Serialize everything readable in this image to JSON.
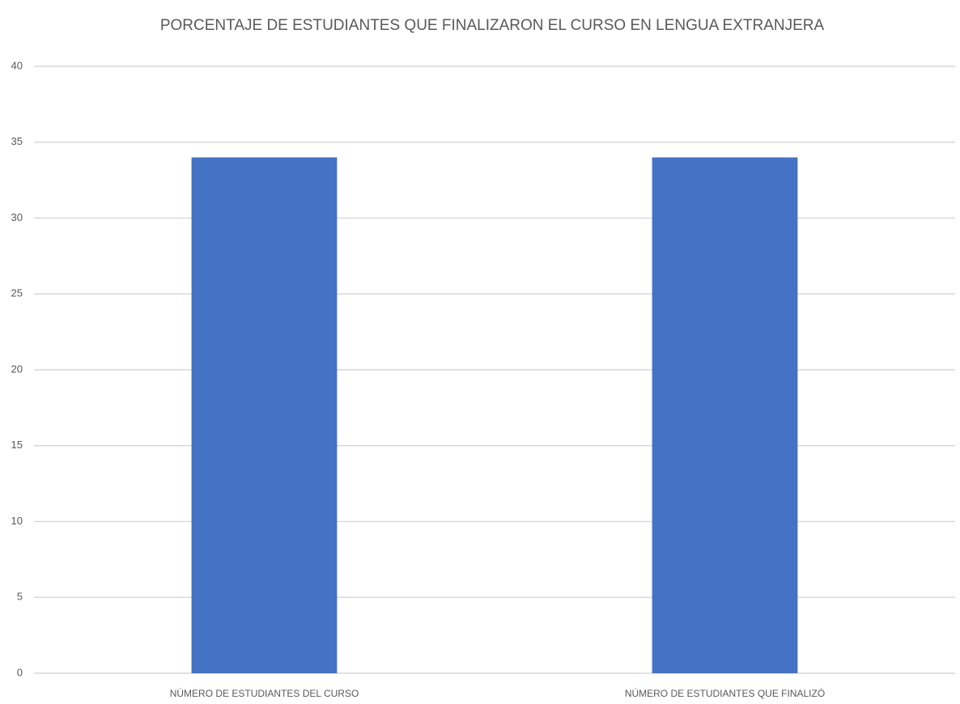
{
  "chart_data": {
    "type": "bar",
    "title": "PORCENTAJE DE ESTUDIANTES QUE FINALIZARON EL CURSO EN LENGUA EXTRANJERA",
    "categories": [
      "NÚMERO DE ESTUDIANTES DEL CURSO",
      "NÚMERO DE ESTUDIANTES QUE FINALIZÓ"
    ],
    "values": [
      34,
      34
    ],
    "color": "#4472c4",
    "ylim": [
      0,
      40
    ],
    "yticks": [
      0,
      5,
      10,
      15,
      20,
      25,
      30,
      35,
      40
    ],
    "grid": true
  }
}
